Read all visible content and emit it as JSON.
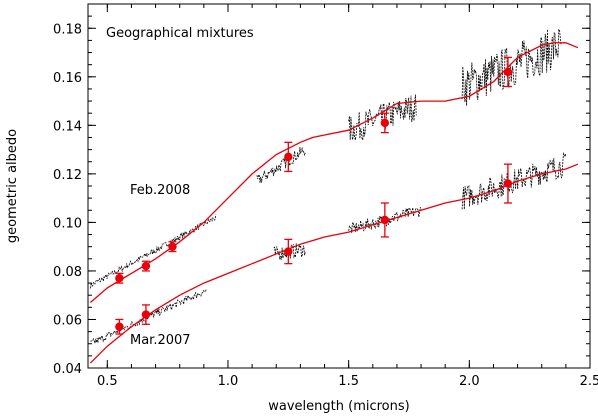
{
  "chart_data": {
    "type": "line",
    "title": "",
    "annotation": "Geographical mixtures",
    "xlabel": "wavelength (microns)",
    "ylabel": "geometric albedo",
    "xlim": [
      0.42,
      2.5
    ],
    "ylim": [
      0.04,
      0.19
    ],
    "xticks": [
      0.5,
      1.0,
      1.5,
      2.0,
      2.5
    ],
    "yticks": [
      0.04,
      0.06,
      0.08,
      0.1,
      0.12,
      0.14,
      0.16,
      0.18
    ],
    "xtick_labels": [
      "0.5",
      "1.0",
      "1.5",
      "2.0",
      "2.5"
    ],
    "ytick_labels": [
      "0.04",
      "0.06",
      "0.08",
      "0.10",
      "0.12",
      "0.14",
      "0.16",
      "0.18"
    ],
    "colors": {
      "model": "#e8000b",
      "observed": "#000000"
    },
    "series": [
      {
        "name": "Feb.2008",
        "model_x": [
          0.43,
          0.5,
          0.6,
          0.7,
          0.8,
          0.9,
          1.0,
          1.1,
          1.2,
          1.3,
          1.35,
          1.4,
          1.5,
          1.6,
          1.7,
          1.8,
          1.9,
          2.0,
          2.1,
          2.2,
          2.3,
          2.35,
          2.4,
          2.45
        ],
        "model_y": [
          0.067,
          0.073,
          0.079,
          0.085,
          0.092,
          0.1,
          0.11,
          0.12,
          0.128,
          0.133,
          0.135,
          0.136,
          0.138,
          0.143,
          0.149,
          0.15,
          0.15,
          0.152,
          0.158,
          0.168,
          0.173,
          0.174,
          0.174,
          0.172
        ],
        "observed_segments": [
          {
            "x_range": [
              0.43,
              0.95
            ],
            "trend_y": [
              0.074,
              0.102
            ],
            "noise": 0.0012
          },
          {
            "x_range": [
              1.12,
              1.32
            ],
            "trend_y": [
              0.117,
              0.13
            ],
            "noise": 0.0025
          },
          {
            "x_range": [
              1.5,
              1.78
            ],
            "trend_y": [
              0.138,
              0.148
            ],
            "noise": 0.006
          },
          {
            "x_range": [
              1.97,
              2.38
            ],
            "trend_y": [
              0.156,
              0.173
            ],
            "noise": 0.009
          }
        ],
        "points": [
          {
            "x": 0.55,
            "y": 0.077,
            "err": 0.002
          },
          {
            "x": 0.66,
            "y": 0.082,
            "err": 0.002
          },
          {
            "x": 0.77,
            "y": 0.09,
            "err": 0.002
          },
          {
            "x": 1.25,
            "y": 0.127,
            "err": 0.006
          },
          {
            "x": 1.65,
            "y": 0.141,
            "err": 0.004
          },
          {
            "x": 2.16,
            "y": 0.162,
            "err": 0.006
          }
        ]
      },
      {
        "name": "Mar.2007",
        "model_x": [
          0.43,
          0.5,
          0.6,
          0.7,
          0.8,
          0.9,
          1.0,
          1.1,
          1.2,
          1.3,
          1.4,
          1.5,
          1.6,
          1.7,
          1.8,
          1.9,
          2.0,
          2.1,
          2.2,
          2.3,
          2.4,
          2.45
        ],
        "model_y": [
          0.042,
          0.049,
          0.057,
          0.064,
          0.07,
          0.075,
          0.079,
          0.083,
          0.087,
          0.091,
          0.094,
          0.096,
          0.099,
          0.102,
          0.105,
          0.108,
          0.11,
          0.113,
          0.117,
          0.12,
          0.122,
          0.124
        ],
        "observed_segments": [
          {
            "x_range": [
              0.43,
              0.91
            ],
            "trend_y": [
              0.05,
              0.072
            ],
            "noise": 0.0015
          },
          {
            "x_range": [
              1.19,
              1.32
            ],
            "trend_y": [
              0.087,
              0.089
            ],
            "noise": 0.003
          },
          {
            "x_range": [
              1.5,
              1.8
            ],
            "trend_y": [
              0.097,
              0.105
            ],
            "noise": 0.0025
          },
          {
            "x_range": [
              1.97,
              2.4
            ],
            "trend_y": [
              0.11,
              0.124
            ],
            "noise": 0.005
          }
        ],
        "points": [
          {
            "x": 0.55,
            "y": 0.057,
            "err": 0.003
          },
          {
            "x": 0.66,
            "y": 0.062,
            "err": 0.004
          },
          {
            "x": 1.25,
            "y": 0.088,
            "err": 0.005
          },
          {
            "x": 1.65,
            "y": 0.101,
            "err": 0.007
          },
          {
            "x": 2.16,
            "y": 0.116,
            "err": 0.008
          }
        ]
      }
    ]
  }
}
